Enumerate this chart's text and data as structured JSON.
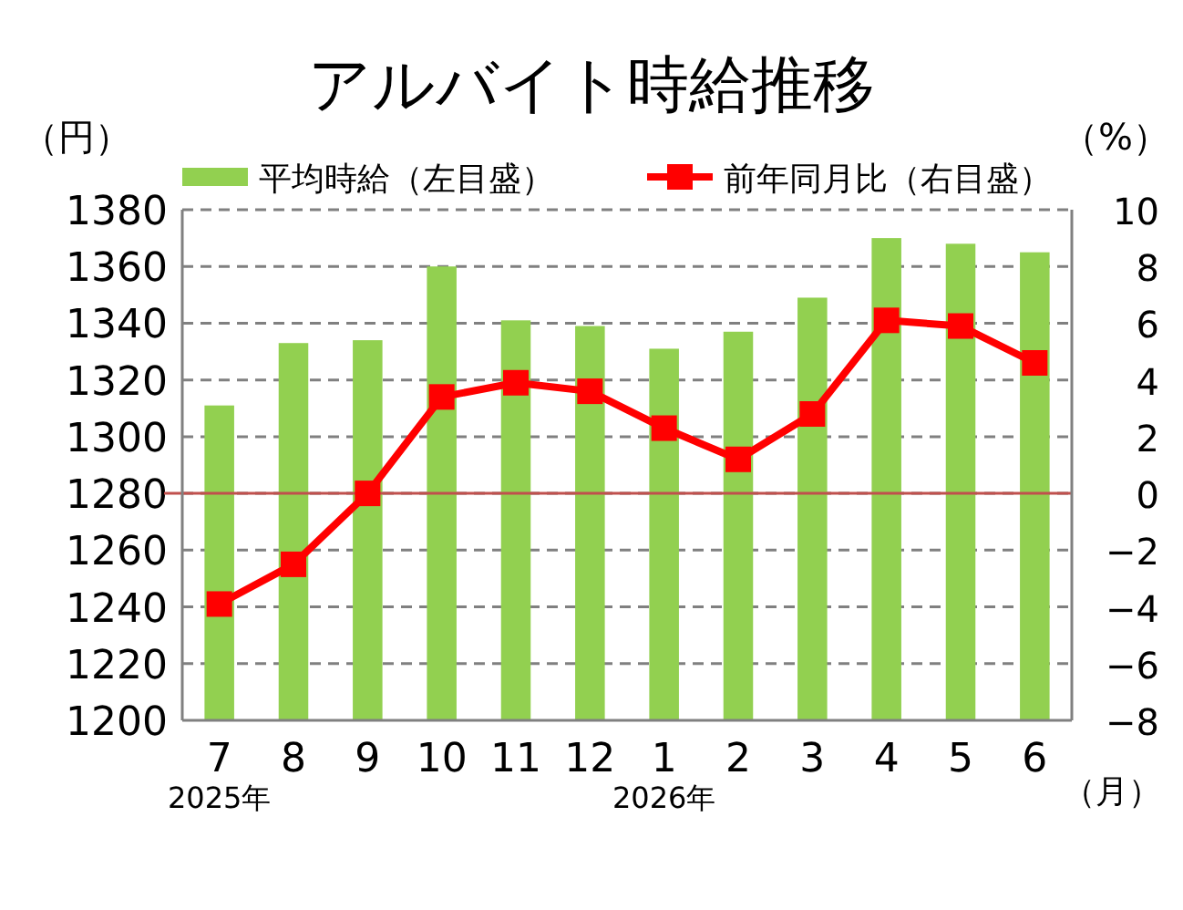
{
  "chart_data": {
    "type": "bar",
    "title": "アルバイト時給推移",
    "ylabel": "（円）",
    "y2label": "（%）",
    "xlabel": "（月）",
    "categories": [
      "7\n2025年",
      "8",
      "9",
      "10",
      "11",
      "12",
      "1\n2026年",
      "2",
      "3",
      "4",
      "5",
      "6"
    ],
    "series": [
      {
        "name": "平均時給（左目盛）",
        "color": "#92d050",
        "values": [
          1311,
          1333,
          1334,
          1360,
          1341,
          1339,
          1331,
          1337,
          1349,
          1370,
          1368,
          1365
        ]
      },
      {
        "name": "前年同月比（右目盛）",
        "type": "line",
        "axis": "y2",
        "color": "#ff0000",
        "marker": "square",
        "values": [
          -3.9,
          -2.5,
          0.0,
          3.4,
          3.9,
          3.6,
          2.3,
          1.2,
          2.8,
          6.1,
          5.9,
          4.6
        ]
      }
    ],
    "ylim": [
      1200,
      1380
    ],
    "yticks": [
      1200,
      1220,
      1240,
      1260,
      1280,
      1300,
      1320,
      1340,
      1360,
      1380
    ],
    "y2lim": [
      -8,
      10
    ],
    "y2ticks": [
      -8,
      -6,
      -4,
      -2,
      0,
      2,
      4,
      6,
      8,
      10
    ],
    "ref_lines": [
      {
        "axis": "y2",
        "value": 0,
        "color": "#c0504d"
      }
    ],
    "grid": "y",
    "legend": "top"
  }
}
